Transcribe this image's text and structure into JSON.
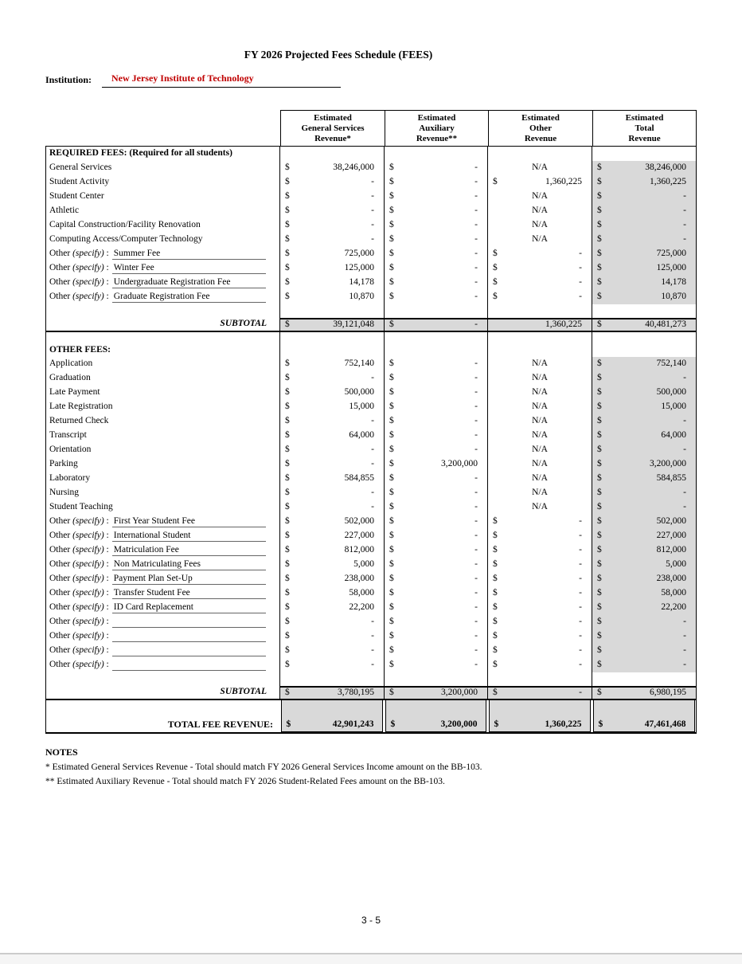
{
  "page": {
    "title": "FY 2026 Projected Fees Schedule (FEES)",
    "institution_label": "Institution:",
    "institution_value": "New Jersey Institute of Technology",
    "page_number": "3 - 5"
  },
  "colors": {
    "institution_red": "#C00000",
    "shaded_cell_gray": "#D9D9D9"
  },
  "table": {
    "columns": [
      {
        "lines": [
          "Estimated",
          "General Services",
          "Revenue*"
        ]
      },
      {
        "lines": [
          "Estimated",
          "Auxiliary",
          "Revenue**"
        ]
      },
      {
        "lines": [
          "Estimated",
          "Other",
          "Revenue"
        ]
      },
      {
        "lines": [
          "Estimated",
          "Total",
          "Revenue"
        ]
      }
    ],
    "other_prefix": {
      "plain": "Other ",
      "italic": "(specify)",
      "colon": " :"
    },
    "required": {
      "section_label": "REQUIRED FEES: (Required for all students)",
      "subtotal_label": "SUBTOTAL",
      "rows": [
        {
          "label": "General Services",
          "cells": {
            "gs": [
              "$",
              "38,246,000"
            ],
            "aux": [
              "$",
              "-"
            ],
            "other": "N/A",
            "total": [
              "$",
              "38,246,000"
            ]
          }
        },
        {
          "label": "Student Activity",
          "cells": {
            "gs": [
              "$",
              "-"
            ],
            "aux": [
              "$",
              "-"
            ],
            "other": [
              "$",
              "1,360,225"
            ],
            "total": [
              "$",
              "1,360,225"
            ]
          }
        },
        {
          "label": "Student Center",
          "cells": {
            "gs": [
              "$",
              "-"
            ],
            "aux": [
              "$",
              "-"
            ],
            "other": "N/A",
            "total": [
              "$",
              "-"
            ]
          }
        },
        {
          "label": "Athletic",
          "cells": {
            "gs": [
              "$",
              "-"
            ],
            "aux": [
              "$",
              "-"
            ],
            "other": "N/A",
            "total": [
              "$",
              "-"
            ]
          }
        },
        {
          "label": "Capital Construction/Facility Renovation",
          "cells": {
            "gs": [
              "$",
              "-"
            ],
            "aux": [
              "$",
              "-"
            ],
            "other": "N/A",
            "total": [
              "$",
              "-"
            ]
          }
        },
        {
          "label": "Computing Access/Computer Technology",
          "cells": {
            "gs": [
              "$",
              "-"
            ],
            "aux": [
              "$",
              "-"
            ],
            "other": "N/A",
            "total": [
              "$",
              "-"
            ]
          }
        },
        {
          "specify": "Summer Fee",
          "cells": {
            "gs": [
              "$",
              "725,000"
            ],
            "aux": [
              "$",
              "-"
            ],
            "other": [
              "$",
              "-"
            ],
            "total": [
              "$",
              "725,000"
            ]
          }
        },
        {
          "specify": "Winter Fee",
          "cells": {
            "gs": [
              "$",
              "125,000"
            ],
            "aux": [
              "$",
              "-"
            ],
            "other": [
              "$",
              "-"
            ],
            "total": [
              "$",
              "125,000"
            ]
          }
        },
        {
          "specify": "Undergraduate Registration Fee",
          "cells": {
            "gs": [
              "$",
              "14,178"
            ],
            "aux": [
              "$",
              "-"
            ],
            "other": [
              "$",
              "-"
            ],
            "total": [
              "$",
              "14,178"
            ]
          }
        },
        {
          "specify": "Graduate Registration Fee",
          "cells": {
            "gs": [
              "$",
              "10,870"
            ],
            "aux": [
              "$",
              "-"
            ],
            "other": [
              "$",
              "-"
            ],
            "total": [
              "$",
              "10,870"
            ]
          }
        }
      ],
      "subtotal": {
        "cells": {
          "gs": [
            "$",
            "39,121,048"
          ],
          "aux": [
            "$",
            "-"
          ],
          "other": [
            "",
            "1,360,225"
          ],
          "total": [
            "$",
            "40,481,273"
          ]
        }
      }
    },
    "other": {
      "section_label": "OTHER FEES:",
      "subtotal_label": "SUBTOTAL",
      "rows": [
        {
          "label": "Application",
          "cells": {
            "gs": [
              "$",
              "752,140"
            ],
            "aux": [
              "$",
              "-"
            ],
            "other": "N/A",
            "total": [
              "$",
              "752,140"
            ]
          }
        },
        {
          "label": "Graduation",
          "cells": {
            "gs": [
              "$",
              "-"
            ],
            "aux": [
              "$",
              "-"
            ],
            "other": "N/A",
            "total": [
              "$",
              "-"
            ]
          }
        },
        {
          "label": "Late Payment",
          "cells": {
            "gs": [
              "$",
              "500,000"
            ],
            "aux": [
              "$",
              "-"
            ],
            "other": "N/A",
            "total": [
              "$",
              "500,000"
            ]
          }
        },
        {
          "label": "Late Registration",
          "cells": {
            "gs": [
              "$",
              "15,000"
            ],
            "aux": [
              "$",
              "-"
            ],
            "other": "N/A",
            "total": [
              "$",
              "15,000"
            ]
          }
        },
        {
          "label": "Returned Check",
          "cells": {
            "gs": [
              "$",
              "-"
            ],
            "aux": [
              "$",
              "-"
            ],
            "other": "N/A",
            "total": [
              "$",
              "-"
            ]
          }
        },
        {
          "label": "Transcript",
          "cells": {
            "gs": [
              "$",
              "64,000"
            ],
            "aux": [
              "$",
              "-"
            ],
            "other": "N/A",
            "total": [
              "$",
              "64,000"
            ]
          }
        },
        {
          "label": "Orientation",
          "cells": {
            "gs": [
              "$",
              "-"
            ],
            "aux": [
              "$",
              "-"
            ],
            "other": "N/A",
            "total": [
              "$",
              "-"
            ]
          }
        },
        {
          "label": "Parking",
          "cells": {
            "gs": [
              "$",
              "-"
            ],
            "aux": [
              "$",
              "3,200,000"
            ],
            "other": "N/A",
            "total": [
              "$",
              "3,200,000"
            ]
          }
        },
        {
          "label": "Laboratory",
          "cells": {
            "gs": [
              "$",
              "584,855"
            ],
            "aux": [
              "$",
              "-"
            ],
            "other": "N/A",
            "total": [
              "$",
              "584,855"
            ]
          }
        },
        {
          "label": "Nursing",
          "cells": {
            "gs": [
              "$",
              "-"
            ],
            "aux": [
              "$",
              "-"
            ],
            "other": "N/A",
            "total": [
              "$",
              "-"
            ]
          }
        },
        {
          "label": "Student Teaching",
          "cells": {
            "gs": [
              "$",
              "-"
            ],
            "aux": [
              "$",
              "-"
            ],
            "other": "N/A",
            "total": [
              "$",
              "-"
            ]
          }
        },
        {
          "specify": "First Year Student Fee",
          "cells": {
            "gs": [
              "$",
              "502,000"
            ],
            "aux": [
              "$",
              "-"
            ],
            "other": [
              "$",
              "-"
            ],
            "total": [
              "$",
              "502,000"
            ]
          }
        },
        {
          "specify": "International Student",
          "cells": {
            "gs": [
              "$",
              "227,000"
            ],
            "aux": [
              "$",
              "-"
            ],
            "other": [
              "$",
              "-"
            ],
            "total": [
              "$",
              "227,000"
            ]
          }
        },
        {
          "specify": "Matriculation Fee",
          "cells": {
            "gs": [
              "$",
              "812,000"
            ],
            "aux": [
              "$",
              "-"
            ],
            "other": [
              "$",
              "-"
            ],
            "total": [
              "$",
              "812,000"
            ]
          }
        },
        {
          "specify": "Non Matriculating Fees",
          "cells": {
            "gs": [
              "$",
              "5,000"
            ],
            "aux": [
              "$",
              "-"
            ],
            "other": [
              "$",
              "-"
            ],
            "total": [
              "$",
              "5,000"
            ]
          }
        },
        {
          "specify": "Payment Plan Set-Up",
          "cells": {
            "gs": [
              "$",
              "238,000"
            ],
            "aux": [
              "$",
              "-"
            ],
            "other": [
              "$",
              "-"
            ],
            "total": [
              "$",
              "238,000"
            ]
          }
        },
        {
          "specify": "Transfer Student Fee",
          "cells": {
            "gs": [
              "$",
              "58,000"
            ],
            "aux": [
              "$",
              "-"
            ],
            "other": [
              "$",
              "-"
            ],
            "total": [
              "$",
              "58,000"
            ]
          }
        },
        {
          "specify": "ID Card Replacement",
          "cells": {
            "gs": [
              "$",
              "22,200"
            ],
            "aux": [
              "$",
              "-"
            ],
            "other": [
              "$",
              "-"
            ],
            "total": [
              "$",
              "22,200"
            ]
          }
        },
        {
          "specify": "",
          "cells": {
            "gs": [
              "$",
              "-"
            ],
            "aux": [
              "$",
              "-"
            ],
            "other": [
              "$",
              "-"
            ],
            "total": [
              "$",
              "-"
            ]
          }
        },
        {
          "specify": "",
          "cells": {
            "gs": [
              "$",
              "-"
            ],
            "aux": [
              "$",
              "-"
            ],
            "other": [
              "$",
              "-"
            ],
            "total": [
              "$",
              "-"
            ]
          }
        },
        {
          "specify": "",
          "cells": {
            "gs": [
              "$",
              "-"
            ],
            "aux": [
              "$",
              "-"
            ],
            "other": [
              "$",
              "-"
            ],
            "total": [
              "$",
              "-"
            ]
          }
        },
        {
          "specify": "",
          "cells": {
            "gs": [
              "$",
              "-"
            ],
            "aux": [
              "$",
              "-"
            ],
            "other": [
              "$",
              "-"
            ],
            "total": [
              "$",
              "-"
            ]
          }
        }
      ],
      "subtotal": {
        "cells": {
          "gs": [
            "$",
            "3,780,195"
          ],
          "aux": [
            "$",
            "3,200,000"
          ],
          "other": [
            "$",
            "-"
          ],
          "total": [
            "$",
            "6,980,195"
          ]
        }
      }
    },
    "total": {
      "label": "TOTAL FEE REVENUE:",
      "cells": {
        "gs": [
          "$",
          "42,901,243"
        ],
        "aux": [
          "$",
          "3,200,000"
        ],
        "other": [
          "$",
          "1,360,225"
        ],
        "total": [
          "$",
          "47,461,468"
        ]
      }
    }
  },
  "notes": {
    "heading": "NOTES",
    "lines": [
      "* Estimated General Services Revenue - Total should match FY 2026 General Services Income amount on the BB-103.",
      "** Estimated Auxiliary Revenue - Total should match FY 2026 Student-Related Fees amount on the BB-103."
    ]
  }
}
